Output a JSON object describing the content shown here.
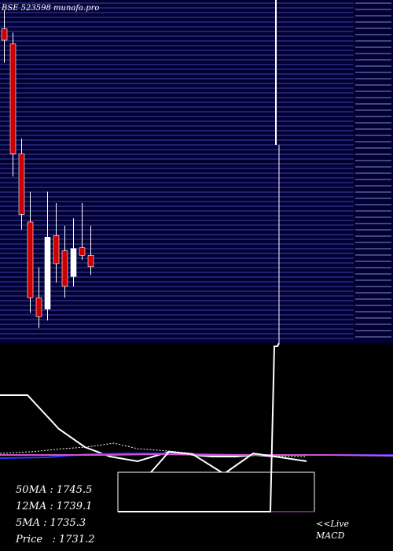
{
  "header": {
    "title": "BSE 523598  munafa.pro"
  },
  "legend": {
    "ma50": "50MA : 1745.5",
    "ma12": "12MA : 1739.1",
    "ma5": "5MA : 1735.3",
    "price": "Price   : 1731.2"
  },
  "footer": {
    "live": "<<Live",
    "macd": "MACD"
  },
  "colors": {
    "price_panel_bg": "#000033",
    "grid": "#3f3fa8",
    "bear_candle": "#cc0000",
    "bull_candle": "#ffffff",
    "wick": "#ffffff",
    "ma_blue": "#3333ff",
    "ma_magenta": "#cc55cc",
    "macd_line": "#ffffff"
  },
  "chart_data": {
    "type": "candlestick",
    "title": "BSE 523598  munafa.pro",
    "y_axis_position": "right",
    "ylim": [
      1630,
      2083
    ],
    "candles": [
      {
        "open": 2045,
        "high": 2070,
        "low": 2000,
        "close": 2030,
        "dir": "bear"
      },
      {
        "open": 2025,
        "high": 2040,
        "low": 1850,
        "close": 1880,
        "dir": "bear"
      },
      {
        "open": 1880,
        "high": 1900,
        "low": 1780,
        "close": 1800,
        "dir": "bear"
      },
      {
        "open": 1790,
        "high": 1830,
        "low": 1670,
        "close": 1690,
        "dir": "bear"
      },
      {
        "open": 1690,
        "high": 1730,
        "low": 1650,
        "close": 1665,
        "dir": "bear"
      },
      {
        "open": 1675,
        "high": 1830,
        "low": 1660,
        "close": 1770,
        "dir": "bull"
      },
      {
        "open": 1772,
        "high": 1815,
        "low": 1710,
        "close": 1735,
        "dir": "bear"
      },
      {
        "open": 1752,
        "high": 1785,
        "low": 1690,
        "close": 1705,
        "dir": "bear"
      },
      {
        "open": 1718,
        "high": 1795,
        "low": 1705,
        "close": 1755,
        "dir": "bull"
      },
      {
        "open": 1756,
        "high": 1815,
        "low": 1740,
        "close": 1746,
        "dir": "bear"
      },
      {
        "open": 1746,
        "high": 1785,
        "low": 1720,
        "close": 1731,
        "dir": "bear"
      }
    ]
  }
}
